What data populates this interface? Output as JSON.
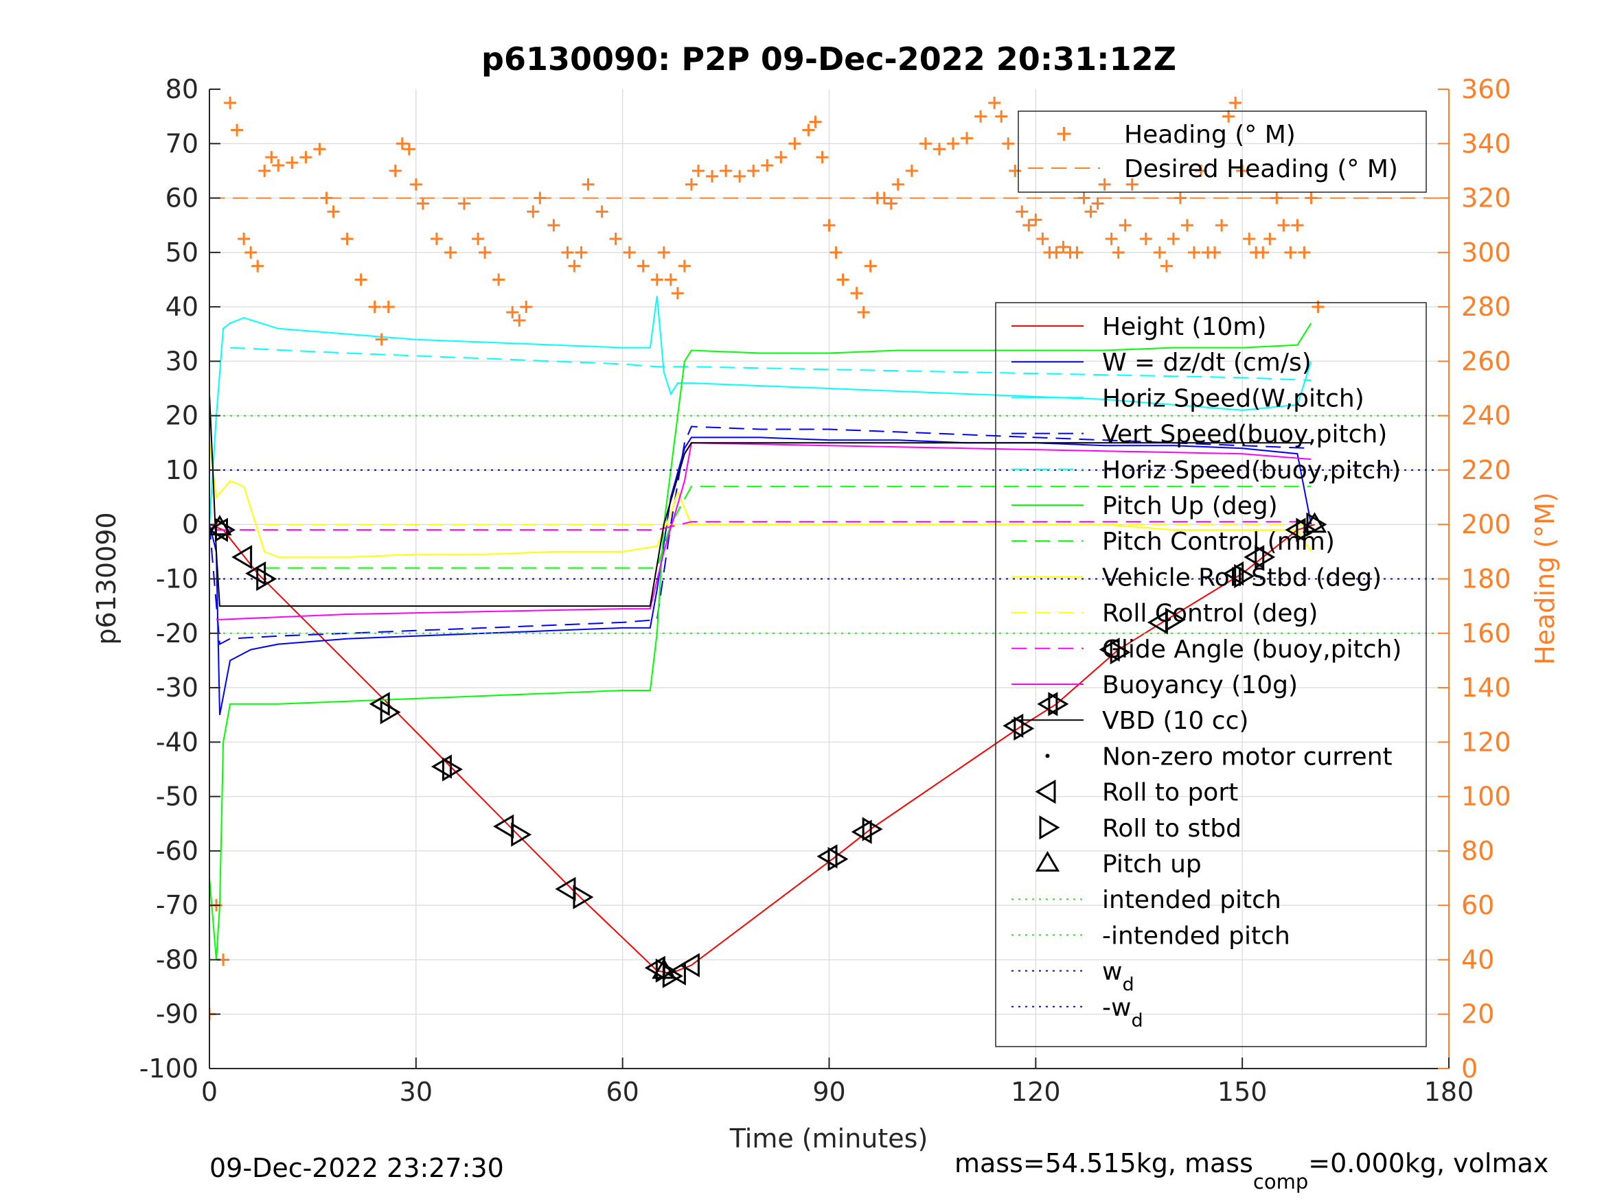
{
  "chart_data": {
    "type": "line",
    "title": "p6130090: P2P 09-Dec-2022 20:31:12Z",
    "xlabel": "Time (minutes)",
    "ylabel": "p6130090",
    "y2label": "Heading (°M)",
    "xlim": [
      0,
      180
    ],
    "ylim": [
      -100,
      80
    ],
    "y2lim": [
      0,
      360
    ],
    "xticks": [
      "0",
      "30",
      "60",
      "90",
      "120",
      "150",
      "180"
    ],
    "yticks": [
      "80",
      "70",
      "60",
      "50",
      "40",
      "30",
      "20",
      "10",
      "0",
      "-10",
      "-20",
      "-30",
      "-40",
      "-50",
      "-60",
      "-70",
      "-80",
      "-90",
      "-100"
    ],
    "y2ticks": [
      "360",
      "340",
      "320",
      "300",
      "280",
      "260",
      "240",
      "220",
      "200",
      "180",
      "160",
      "140",
      "120",
      "100",
      "80",
      "60",
      "40",
      "20",
      "0"
    ],
    "grid": true,
    "footer_left": "09-Dec-2022 23:27:30",
    "footer_right": {
      "a": "mass=54.515kg, mass",
      "sub": "comp",
      "b": "=0.000kg, volmax"
    },
    "heading_legend": [
      {
        "label": "Heading (° M)",
        "color": "#ff7f27",
        "style": "plus"
      },
      {
        "label": "Desired Heading (° M)",
        "color": "#ff7f27",
        "style": "dash"
      }
    ],
    "legend": [
      {
        "label": "Height (10m)",
        "color": "#ff0000",
        "style": "solid"
      },
      {
        "label": "W = dz/dt (cm/s)",
        "color": "#0000ff",
        "style": "solid"
      },
      {
        "label": "Horiz Speed(W,pitch)",
        "color": "#00ffff",
        "style": "solid"
      },
      {
        "label": "Vert Speed(buoy,pitch)",
        "color": "#0000ff",
        "style": "dash"
      },
      {
        "label": "Horiz Speed(buoy,pitch)",
        "color": "#00ffff",
        "style": "dash"
      },
      {
        "label": "Pitch Up (deg)",
        "color": "#00ff00",
        "style": "solid"
      },
      {
        "label": "Pitch Control (mm)",
        "color": "#00ff00",
        "style": "dash"
      },
      {
        "label": "Vehicle Roll Stbd (deg)",
        "color": "#ffff00",
        "style": "solid"
      },
      {
        "label": "Roll Control (deg)",
        "color": "#ffff00",
        "style": "dash"
      },
      {
        "label": "Glide Angle (buoy,pitch)",
        "color": "#ff00ff",
        "style": "dash"
      },
      {
        "label": "Buoyancy (10g)",
        "color": "#ff00ff",
        "style": "solid"
      },
      {
        "label": "VBD (10 cc)",
        "color": "#000000",
        "style": "solid"
      },
      {
        "label": "Non-zero motor current",
        "color": "#000000",
        "style": "dot"
      },
      {
        "label": "Roll to port",
        "color": "#000000",
        "style": "tri-left"
      },
      {
        "label": "Roll to stbd",
        "color": "#000000",
        "style": "tri-right"
      },
      {
        "label": "Pitch up",
        "color": "#000000",
        "style": "tri-up"
      },
      {
        "label": "intended pitch",
        "color": "#00ff00",
        "style": "dotted"
      },
      {
        "label": "-intended pitch",
        "color": "#00ff00",
        "style": "dotted"
      },
      {
        "label": "w",
        "sub": "d",
        "color": "#0000ff",
        "style": "dotted"
      },
      {
        "label": "-w",
        "sub": "d",
        "color": "#0000ff",
        "style": "dotted"
      }
    ],
    "series": [
      {
        "name": "Height (10m)",
        "color": "#ff0000",
        "x": [
          0,
          2,
          7,
          26,
          35,
          44,
          53,
          65,
          67,
          70,
          91,
          96,
          118,
          123,
          132,
          139,
          150,
          153,
          158,
          160.5
        ],
        "y": [
          0,
          -1,
          -9,
          -33,
          -44.5,
          -56,
          -67.5,
          -82,
          -82.5,
          -81,
          -61,
          -56,
          -37,
          -33,
          -23,
          -17.5,
          -9,
          -6,
          -1,
          0
        ]
      },
      {
        "name": "W = dz/dt (cm/s)",
        "color": "#0000ff",
        "x": [
          0,
          1,
          1.5,
          3,
          6,
          10,
          20,
          30,
          40,
          50,
          60,
          64,
          65,
          67,
          69,
          70,
          80,
          90,
          100,
          110,
          120,
          130,
          140,
          150,
          158,
          160
        ],
        "y": [
          0,
          -5,
          -35,
          -25,
          -23,
          -22,
          -21,
          -20.5,
          -20,
          -19.5,
          -19,
          -19,
          -12,
          5,
          14,
          16,
          16,
          15.5,
          15.5,
          15,
          15,
          14.5,
          14.5,
          14,
          13,
          0
        ]
      },
      {
        "name": "Horiz Speed(W,pitch)",
        "color": "#00ffff",
        "x": [
          0,
          1,
          2,
          3,
          5,
          10,
          20,
          30,
          40,
          50,
          60,
          64,
          65,
          66,
          67,
          68,
          70,
          80,
          90,
          100,
          110,
          120,
          130,
          140,
          150,
          158,
          160
        ],
        "y": [
          0,
          20,
          36,
          37,
          38,
          36,
          35,
          34,
          33.5,
          33,
          32.5,
          32.5,
          42,
          28,
          24,
          26,
          26,
          25.5,
          25,
          24.5,
          24,
          23.5,
          23,
          22,
          21,
          22,
          30
        ]
      },
      {
        "name": "Vert Speed(buoy,pitch)",
        "color": "#0000ff",
        "x": [
          0,
          1.5,
          3,
          10,
          20,
          30,
          40,
          50,
          60,
          65,
          67,
          69,
          70,
          80,
          90,
          100,
          110,
          120,
          130,
          140,
          150,
          160
        ],
        "y": [
          0,
          -22,
          -21,
          -20.5,
          -20,
          -19.5,
          -19,
          -18.5,
          -18,
          -17.5,
          0,
          15,
          18,
          17.5,
          17.5,
          17,
          16.5,
          16,
          15.5,
          15,
          14.5,
          14
        ]
      },
      {
        "name": "Horiz Speed(buoy,pitch)",
        "color": "#00ffff",
        "x": [
          3,
          20,
          40,
          60,
          65,
          70,
          90,
          110,
          130,
          150,
          160
        ],
        "y": [
          32.5,
          31.5,
          30.5,
          29.5,
          29,
          29,
          28.5,
          28,
          27.5,
          27,
          26.5
        ]
      },
      {
        "name": "Pitch Up (deg)",
        "color": "#00ff00",
        "x": [
          0,
          1,
          1.5,
          2,
          3,
          10,
          20,
          30,
          40,
          50,
          60,
          64,
          65,
          66,
          67,
          68,
          69,
          70,
          80,
          90,
          100,
          110,
          120,
          130,
          140,
          150,
          158,
          160
        ],
        "y": [
          -65,
          -80,
          -70,
          -40,
          -33,
          -33,
          -32.5,
          -32,
          -31.5,
          -31,
          -30.5,
          -30.5,
          -20,
          0,
          10,
          20,
          30,
          32,
          31.5,
          31.5,
          32,
          32,
          32,
          32,
          32.5,
          32.5,
          33,
          37
        ]
      },
      {
        "name": "Pitch Control (mm)",
        "color": "#00ff00",
        "x": [
          8,
          65,
          67,
          70,
          160
        ],
        "y": [
          -8,
          -8,
          0,
          7,
          7
        ]
      },
      {
        "name": "Vehicle Roll Stbd (deg)",
        "color": "#ffff00",
        "x": [
          0,
          1,
          3,
          5,
          8,
          10,
          20,
          30,
          40,
          50,
          60,
          65,
          67,
          68,
          70,
          80,
          90,
          100,
          110,
          120,
          130,
          140,
          150,
          158,
          160
        ],
        "y": [
          15,
          5,
          8,
          7,
          -5,
          -6,
          -6,
          -5.5,
          -5.5,
          -5,
          -5,
          -4,
          2,
          6,
          0,
          0,
          0,
          0,
          0,
          0,
          0,
          -1,
          -1,
          -1,
          -5
        ]
      },
      {
        "name": "Roll Control (deg)",
        "color": "#ffff00",
        "x": [
          8,
          65,
          67,
          160
        ],
        "y": [
          0,
          0,
          0,
          0
        ]
      },
      {
        "name": "Glide Angle (buoy,pitch)",
        "color": "#ff00ff",
        "x": [
          1,
          65,
          70,
          160
        ],
        "y": [
          -1,
          -1,
          0.5,
          0.5
        ]
      },
      {
        "name": "Buoyancy (10g)",
        "color": "#ff00ff",
        "x": [
          1,
          20,
          40,
          60,
          64,
          66,
          69,
          70,
          90,
          110,
          130,
          150,
          160
        ],
        "y": [
          -17.5,
          -16.5,
          -16,
          -15.5,
          -15.5,
          -5,
          8,
          15,
          14.5,
          14,
          13.5,
          13,
          12
        ]
      },
      {
        "name": "VBD (10 cc)",
        "color": "#000000",
        "x": [
          0,
          0.5,
          1,
          1.5,
          3,
          64,
          66,
          69,
          70,
          90,
          110,
          130,
          150,
          160
        ],
        "y": [
          24,
          10,
          -5,
          -15,
          -15,
          -15,
          0,
          13,
          15,
          15,
          15,
          15,
          15,
          15
        ]
      },
      {
        "name": "Heading (° M)",
        "color": "#ff7f27",
        "y_axis": "right",
        "marker": "+",
        "x": [
          0,
          1,
          2,
          3,
          4,
          5,
          6,
          7,
          8,
          9,
          10,
          12,
          14,
          16,
          17,
          18,
          20,
          22,
          24,
          25,
          26,
          27,
          28,
          29,
          30,
          31,
          33,
          35,
          37,
          39,
          40,
          42,
          44,
          45,
          46,
          47,
          48,
          50,
          52,
          53,
          54,
          55,
          57,
          59,
          61,
          63,
          65,
          66,
          67,
          68,
          69,
          70,
          71,
          73,
          75,
          77,
          79,
          81,
          83,
          85,
          87,
          88,
          89,
          90,
          91,
          92,
          94,
          95,
          96,
          97,
          98,
          99,
          100,
          102,
          104,
          106,
          108,
          110,
          112,
          114,
          115,
          116,
          117,
          118,
          119,
          120,
          121,
          122,
          123,
          124,
          125,
          126,
          127,
          128,
          129,
          130,
          131,
          132,
          133,
          134,
          136,
          138,
          139,
          140,
          141,
          142,
          143,
          144,
          145,
          146,
          147,
          148,
          149,
          150,
          151,
          152,
          153,
          154,
          155,
          156,
          157,
          158,
          159,
          160,
          161
        ],
        "y": [
          20,
          60,
          40,
          355,
          345,
          305,
          300,
          295,
          330,
          335,
          332,
          333,
          335,
          338,
          320,
          315,
          305,
          290,
          280,
          268,
          280,
          330,
          340,
          338,
          325,
          318,
          305,
          300,
          318,
          305,
          300,
          290,
          278,
          275,
          280,
          315,
          320,
          310,
          300,
          295,
          300,
          325,
          315,
          305,
          300,
          295,
          290,
          300,
          290,
          285,
          295,
          325,
          330,
          328,
          330,
          328,
          330,
          332,
          335,
          340,
          345,
          348,
          335,
          310,
          300,
          290,
          285,
          278,
          295,
          320,
          320,
          318,
          325,
          330,
          340,
          338,
          340,
          342,
          350,
          355,
          350,
          340,
          330,
          315,
          310,
          312,
          305,
          300,
          300,
          302,
          300,
          300,
          320,
          315,
          318,
          325,
          305,
          300,
          310,
          325,
          305,
          300,
          295,
          305,
          320,
          310,
          300,
          330,
          300,
          300,
          310,
          350,
          355,
          330,
          305,
          300,
          300,
          305,
          320,
          310,
          300,
          310,
          300,
          320,
          280
        ]
      },
      {
        "name": "Desired Heading (° M)",
        "color": "#ff7f27",
        "y_axis": "right",
        "x": [
          0,
          180
        ],
        "y": [
          320,
          320
        ]
      },
      {
        "name": "intended pitch",
        "color": "#00ff00",
        "x": [
          0,
          180
        ],
        "y": [
          20,
          20
        ]
      },
      {
        "name": "-intended pitch",
        "color": "#00ff00",
        "x": [
          0,
          180
        ],
        "y": [
          -20,
          -20
        ]
      },
      {
        "name": "w_d",
        "color": "#0000ff",
        "x": [
          0,
          180
        ],
        "y": [
          10,
          10
        ]
      },
      {
        "name": "-w_d",
        "color": "#0000ff",
        "x": [
          0,
          180
        ],
        "y": [
          -10,
          -10
        ]
      }
    ],
    "markers": {
      "roll_to_port": {
        "x": [
          1.5,
          5,
          7,
          25,
          34,
          43,
          52,
          65,
          68,
          70,
          90,
          95,
          117,
          122,
          131,
          138,
          149,
          152,
          158
        ],
        "y": [
          -1,
          -6,
          -9,
          -33,
          -44.5,
          -55.5,
          -67,
          -81.5,
          -82.5,
          -81,
          -61,
          -56.5,
          -37,
          -33,
          -23,
          -18,
          -9,
          -6,
          -1
        ]
      },
      "roll_to_stbd": {
        "x": [
          2,
          8,
          26,
          35,
          45,
          54,
          66,
          67,
          91,
          96,
          118,
          123,
          132,
          140,
          150,
          153,
          159,
          160.5
        ],
        "y": [
          -1,
          -10,
          -34.5,
          -45,
          -57,
          -68.5,
          -82,
          -83,
          -61.5,
          -56,
          -37.5,
          -33,
          -23.5,
          -17.5,
          -9.5,
          -6,
          -1,
          0
        ]
      },
      "pitch_up": {
        "x": [
          1.5,
          66,
          160.5
        ],
        "y": [
          -0.5,
          -82,
          0
        ]
      }
    }
  }
}
